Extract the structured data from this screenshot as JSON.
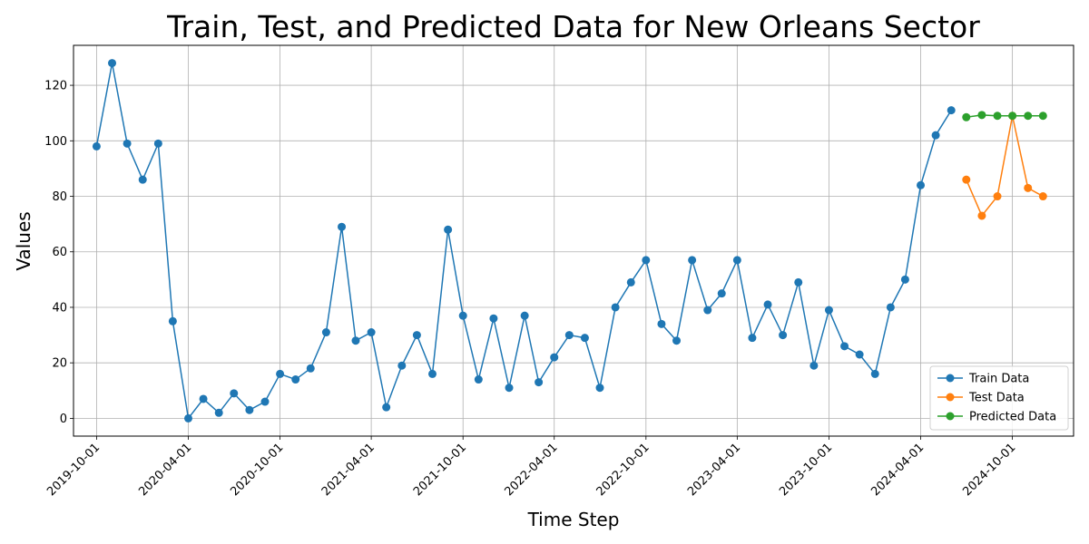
{
  "chart_data": {
    "type": "line",
    "title": "Train, Test, and Predicted Data for New Orleans Sector",
    "xlabel": "Time Step",
    "ylabel": "Values",
    "ylim": [
      -6.4,
      134.4
    ],
    "xlim": [
      "2019-08-16",
      "2025-01-31"
    ],
    "grid": true,
    "legend_position": "lower-right",
    "y_ticks": [
      0,
      20,
      40,
      60,
      80,
      100,
      120
    ],
    "x_ticks": [
      "2019-10-01",
      "2020-04-01",
      "2020-10-01",
      "2021-04-01",
      "2021-10-01",
      "2022-04-01",
      "2022-10-01",
      "2023-04-01",
      "2023-10-01",
      "2024-04-01",
      "2024-10-01"
    ],
    "series": [
      {
        "name": "Train Data",
        "color": "#1f77b4",
        "x": [
          "2019-10-01",
          "2019-11-01",
          "2019-12-01",
          "2020-01-01",
          "2020-02-01",
          "2020-03-01",
          "2020-04-01",
          "2020-05-01",
          "2020-06-01",
          "2020-07-01",
          "2020-08-01",
          "2020-09-01",
          "2020-10-01",
          "2020-11-01",
          "2020-12-01",
          "2021-01-01",
          "2021-02-01",
          "2021-03-01",
          "2021-04-01",
          "2021-05-01",
          "2021-06-01",
          "2021-07-01",
          "2021-08-01",
          "2021-09-01",
          "2021-10-01",
          "2021-11-01",
          "2021-12-01",
          "2022-01-01",
          "2022-02-01",
          "2022-03-01",
          "2022-04-01",
          "2022-05-01",
          "2022-06-01",
          "2022-07-01",
          "2022-08-01",
          "2022-09-01",
          "2022-10-01",
          "2022-11-01",
          "2022-12-01",
          "2023-01-01",
          "2023-02-01",
          "2023-03-01",
          "2023-04-01",
          "2023-05-01",
          "2023-06-01",
          "2023-07-01",
          "2023-08-01",
          "2023-09-01",
          "2023-10-01",
          "2023-11-01",
          "2023-12-01",
          "2024-01-01",
          "2024-02-01",
          "2024-03-01",
          "2024-04-01",
          "2024-05-01",
          "2024-06-01"
        ],
        "values": [
          98,
          128,
          99,
          86,
          99,
          35,
          0,
          7,
          2,
          9,
          3,
          6,
          16,
          14,
          18,
          31,
          69,
          28,
          31,
          4,
          19,
          30,
          16,
          68,
          37,
          14,
          36,
          11,
          37,
          13,
          22,
          30,
          29,
          11,
          40,
          49,
          57,
          34,
          28,
          57,
          39,
          45,
          57,
          29,
          41,
          30,
          49,
          19,
          39,
          26,
          23,
          16,
          40,
          50,
          84,
          102,
          111
        ]
      },
      {
        "name": "Test Data",
        "color": "#ff7f0e",
        "x": [
          "2024-07-01",
          "2024-08-01",
          "2024-09-01",
          "2024-10-01",
          "2024-11-01",
          "2024-12-01"
        ],
        "values": [
          86,
          73,
          80,
          109,
          83,
          80
        ]
      },
      {
        "name": "Predicted Data",
        "color": "#2ca02c",
        "x": [
          "2024-07-01",
          "2024-08-01",
          "2024-09-01",
          "2024-10-01",
          "2024-11-01",
          "2024-12-01"
        ],
        "values": [
          108.5,
          109.3,
          109,
          109,
          109,
          109
        ]
      }
    ]
  }
}
